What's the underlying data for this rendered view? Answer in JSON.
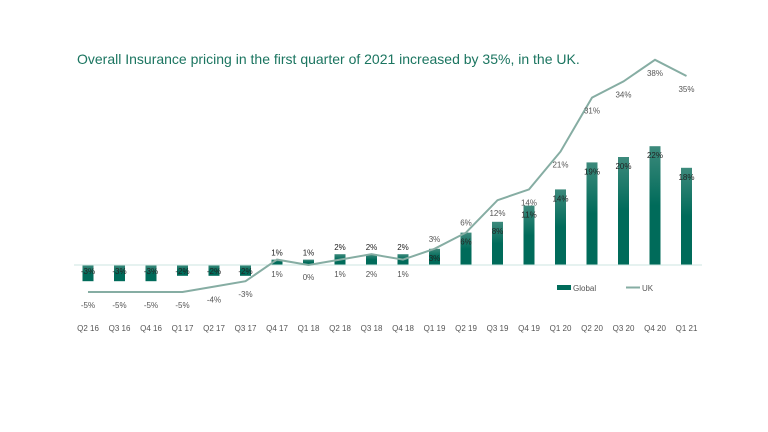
{
  "title": "Overall Insurance pricing in the first quarter of 2021 increased by 35%, in the UK.",
  "chart_data": {
    "type": "bar+line",
    "title": "Overall Insurance pricing in the first quarter of 2021 increased by 35%, in the UK.",
    "categories": [
      "Q2 16",
      "Q3 16",
      "Q4 16",
      "Q1 17",
      "Q2 17",
      "Q3 17",
      "Q4 17",
      "Q1 18",
      "Q2 18",
      "Q3 18",
      "Q4 18",
      "Q1 19",
      "Q2 19",
      "Q3 19",
      "Q4 19",
      "Q1 20",
      "Q2 20",
      "Q3 20",
      "Q4 20",
      "Q1 21"
    ],
    "series": [
      {
        "name": "Global",
        "type": "bar",
        "color": "#006b5a",
        "values": [
          -3,
          -3,
          -3,
          -2,
          -2,
          -2,
          1,
          1,
          2,
          2,
          2,
          3,
          6,
          8,
          11,
          14,
          19,
          20,
          22,
          18
        ]
      },
      {
        "name": "UK",
        "type": "line",
        "color": "#86ada3",
        "values": [
          -5,
          -5,
          -5,
          -5,
          -4,
          -3,
          1,
          0,
          1,
          2,
          1,
          3,
          6,
          12,
          14,
          21,
          31,
          34,
          38,
          35
        ]
      }
    ],
    "unit": "%",
    "legend": "bottom-right",
    "grid": false
  }
}
